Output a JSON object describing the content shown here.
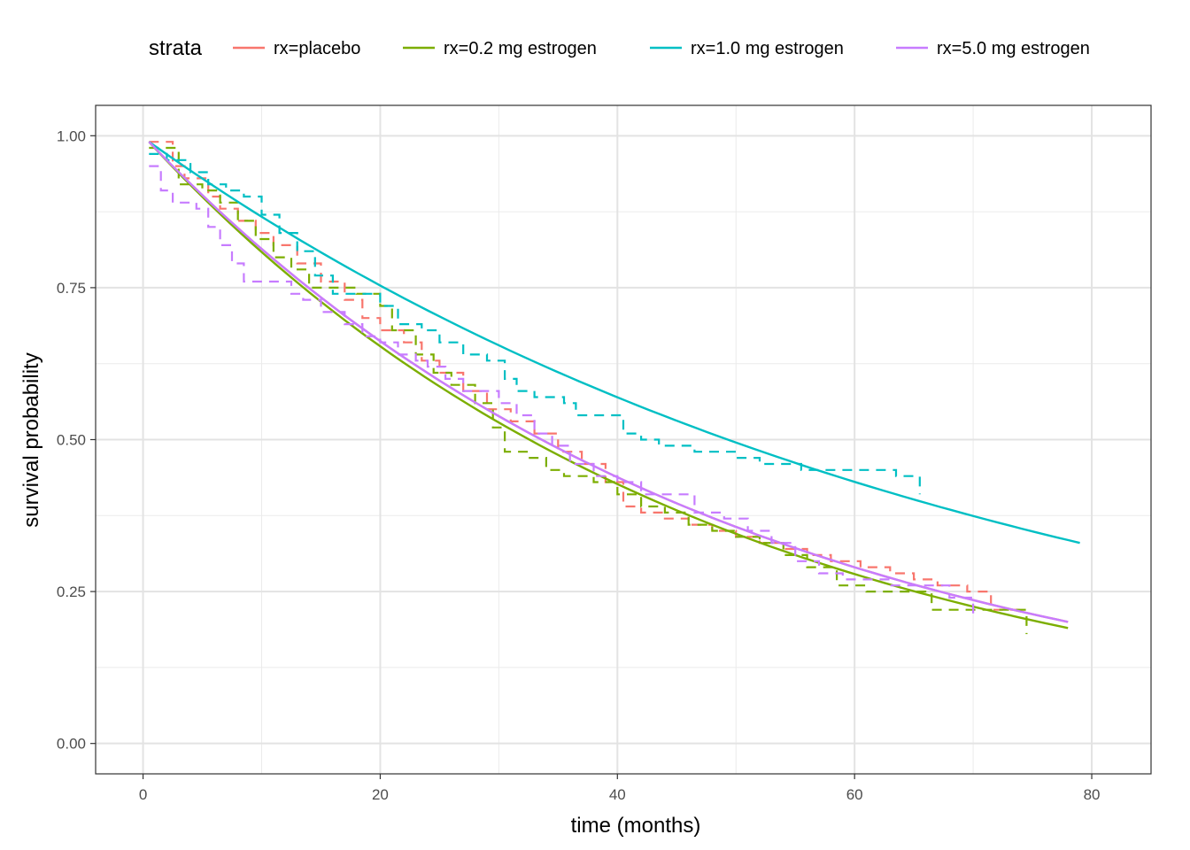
{
  "chart_data": {
    "type": "line",
    "xlabel": "time (months)",
    "ylabel": "survival probability",
    "xlim": [
      -4,
      85
    ],
    "ylim": [
      -0.05,
      1.05
    ],
    "x_ticks": [
      0,
      20,
      40,
      60,
      80
    ],
    "x_tick_labels": [
      "0",
      "20",
      "40",
      "60",
      "80"
    ],
    "y_ticks": [
      0.0,
      0.25,
      0.5,
      0.75,
      1.0
    ],
    "y_tick_labels": [
      "0.00",
      "0.25",
      "0.50",
      "0.75",
      "1.00"
    ],
    "grid": true,
    "legend": {
      "title": "strata",
      "position": "top",
      "entries": [
        "rx=placebo",
        "rx=0.2 mg estrogen",
        "rx=1.0 mg estrogen",
        "rx=5.0 mg estrogen"
      ]
    },
    "series": [
      {
        "name": "rx=placebo",
        "color": "#F8766D",
        "fitted": {
          "x_end": 78,
          "y_end": 0.2
        },
        "km_steps": [
          [
            0.5,
            0.99
          ],
          [
            2.5,
            0.95
          ],
          [
            3.5,
            0.93
          ],
          [
            5.5,
            0.9
          ],
          [
            6.5,
            0.88
          ],
          [
            8,
            0.86
          ],
          [
            9.5,
            0.84
          ],
          [
            11,
            0.82
          ],
          [
            13,
            0.79
          ],
          [
            15,
            0.76
          ],
          [
            17,
            0.73
          ],
          [
            18.5,
            0.7
          ],
          [
            20,
            0.68
          ],
          [
            22,
            0.66
          ],
          [
            23.5,
            0.63
          ],
          [
            25,
            0.61
          ],
          [
            27,
            0.58
          ],
          [
            29,
            0.55
          ],
          [
            31,
            0.53
          ],
          [
            33,
            0.51
          ],
          [
            35,
            0.48
          ],
          [
            37,
            0.46
          ],
          [
            39,
            0.43
          ],
          [
            40.5,
            0.39
          ],
          [
            42,
            0.38
          ],
          [
            44,
            0.37
          ],
          [
            46,
            0.36
          ],
          [
            48,
            0.35
          ],
          [
            50,
            0.34
          ],
          [
            52,
            0.33
          ],
          [
            54,
            0.32
          ],
          [
            56,
            0.31
          ],
          [
            58,
            0.3
          ],
          [
            60.5,
            0.29
          ],
          [
            63,
            0.28
          ],
          [
            65,
            0.27
          ],
          [
            67,
            0.26
          ],
          [
            69.5,
            0.25
          ],
          [
            71.5,
            0.22
          ],
          [
            74.5,
            0.22
          ]
        ]
      },
      {
        "name": "rx=0.2 mg estrogen",
        "color": "#7CAE00",
        "fitted": {
          "x_end": 78,
          "y_end": 0.19
        },
        "km_steps": [
          [
            0.5,
            0.98
          ],
          [
            3,
            0.92
          ],
          [
            5,
            0.91
          ],
          [
            6.5,
            0.89
          ],
          [
            8,
            0.86
          ],
          [
            9.5,
            0.83
          ],
          [
            11,
            0.8
          ],
          [
            12.5,
            0.78
          ],
          [
            14,
            0.75
          ],
          [
            16,
            0.75
          ],
          [
            18,
            0.74
          ],
          [
            20,
            0.72
          ],
          [
            21,
            0.68
          ],
          [
            23,
            0.64
          ],
          [
            24.5,
            0.61
          ],
          [
            26,
            0.59
          ],
          [
            28,
            0.56
          ],
          [
            29.5,
            0.52
          ],
          [
            30.5,
            0.48
          ],
          [
            32.5,
            0.47
          ],
          [
            34,
            0.45
          ],
          [
            35.5,
            0.44
          ],
          [
            38,
            0.43
          ],
          [
            40,
            0.41
          ],
          [
            42,
            0.39
          ],
          [
            44,
            0.38
          ],
          [
            46,
            0.36
          ],
          [
            48,
            0.35
          ],
          [
            50,
            0.34
          ],
          [
            52,
            0.33
          ],
          [
            54,
            0.31
          ],
          [
            56,
            0.29
          ],
          [
            58.5,
            0.26
          ],
          [
            61,
            0.25
          ],
          [
            64,
            0.25
          ],
          [
            66.5,
            0.22
          ],
          [
            69,
            0.22
          ],
          [
            71,
            0.22
          ],
          [
            74.5,
            0.18
          ]
        ]
      },
      {
        "name": "rx=1.0 mg estrogen",
        "color": "#00BFC4",
        "fitted": {
          "x_end": 79,
          "y_end": 0.33
        },
        "km_steps": [
          [
            0.5,
            0.97
          ],
          [
            2,
            0.96
          ],
          [
            4,
            0.94
          ],
          [
            5.5,
            0.92
          ],
          [
            7,
            0.91
          ],
          [
            8.5,
            0.9
          ],
          [
            10,
            0.87
          ],
          [
            11.5,
            0.84
          ],
          [
            13,
            0.81
          ],
          [
            14.5,
            0.77
          ],
          [
            16,
            0.74
          ],
          [
            18,
            0.74
          ],
          [
            20,
            0.72
          ],
          [
            21.5,
            0.69
          ],
          [
            23.5,
            0.68
          ],
          [
            25,
            0.66
          ],
          [
            27,
            0.64
          ],
          [
            29,
            0.63
          ],
          [
            30.5,
            0.6
          ],
          [
            31.5,
            0.58
          ],
          [
            33,
            0.57
          ],
          [
            35.5,
            0.56
          ],
          [
            36.5,
            0.54
          ],
          [
            38.5,
            0.54
          ],
          [
            40.5,
            0.51
          ],
          [
            42,
            0.5
          ],
          [
            43.5,
            0.49
          ],
          [
            46.5,
            0.48
          ],
          [
            50,
            0.47
          ],
          [
            52,
            0.46
          ],
          [
            55.5,
            0.45
          ],
          [
            58,
            0.45
          ],
          [
            63.5,
            0.44
          ],
          [
            65.5,
            0.41
          ]
        ]
      },
      {
        "name": "rx=5.0 mg estrogen",
        "color": "#C77CFF",
        "fitted": {
          "x_end": 78,
          "y_end": 0.2
        },
        "km_steps": [
          [
            0.5,
            0.95
          ],
          [
            1.5,
            0.91
          ],
          [
            2.5,
            0.89
          ],
          [
            4.5,
            0.88
          ],
          [
            5.5,
            0.85
          ],
          [
            6.5,
            0.82
          ],
          [
            7.5,
            0.79
          ],
          [
            8.5,
            0.76
          ],
          [
            12,
            0.76
          ],
          [
            12.5,
            0.74
          ],
          [
            13.5,
            0.73
          ],
          [
            15,
            0.71
          ],
          [
            17,
            0.69
          ],
          [
            18.5,
            0.67
          ],
          [
            20,
            0.66
          ],
          [
            21.5,
            0.64
          ],
          [
            23,
            0.63
          ],
          [
            24,
            0.62
          ],
          [
            25.5,
            0.6
          ],
          [
            27,
            0.58
          ],
          [
            28.5,
            0.58
          ],
          [
            30,
            0.56
          ],
          [
            31.5,
            0.54
          ],
          [
            33,
            0.51
          ],
          [
            34.5,
            0.49
          ],
          [
            36,
            0.46
          ],
          [
            38,
            0.44
          ],
          [
            40,
            0.43
          ],
          [
            42,
            0.41
          ],
          [
            44,
            0.41
          ],
          [
            46.5,
            0.38
          ],
          [
            49,
            0.37
          ],
          [
            51,
            0.35
          ],
          [
            53,
            0.33
          ],
          [
            55,
            0.3
          ],
          [
            57,
            0.28
          ],
          [
            59,
            0.27
          ],
          [
            61,
            0.27
          ],
          [
            63,
            0.26
          ],
          [
            66,
            0.26
          ],
          [
            68,
            0.24
          ],
          [
            70,
            0.21
          ]
        ]
      }
    ]
  }
}
